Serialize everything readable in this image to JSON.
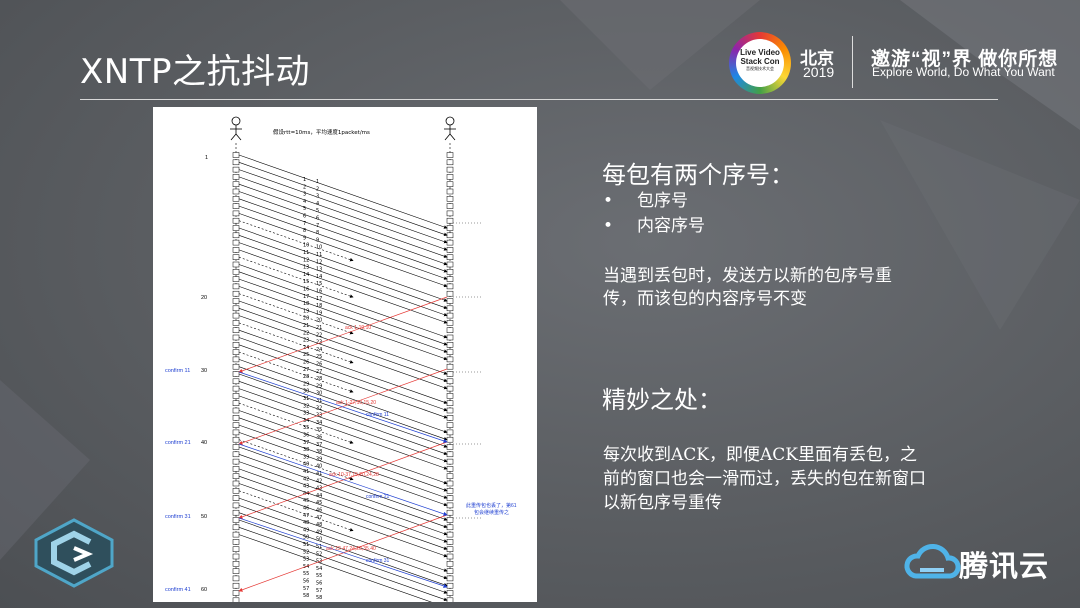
{
  "header": {
    "title": "XNTP之抗抖动",
    "event_badge_lines": [
      "Live Video",
      "Stack Con",
      "音视频技术大会"
    ],
    "city": "北京",
    "year": "2019",
    "slogan_cn": "邀游“视”界 做你所想",
    "slogan_en": "Explore World, Do What You Want"
  },
  "diagram": {
    "note": "假设rtt=10ms，平均速度1packet/ms",
    "left_ticks": [
      "1",
      "20",
      "30",
      "40",
      "50",
      "60"
    ],
    "confirms_left": [
      "confirm 11",
      "confirm 21",
      "confirm 31",
      "confirm 41"
    ],
    "pair_labels": [
      "1",
      "2",
      "3",
      "4",
      "5",
      "6",
      "7",
      "8",
      "9",
      "10",
      "11",
      "12",
      "13",
      "14",
      "15",
      "16",
      "17",
      "18",
      "19",
      "20",
      "21",
      "22",
      "23",
      "24",
      "25",
      "26",
      "27",
      "28",
      "29",
      "30",
      "31",
      "32",
      "33",
      "34",
      "35",
      "36",
      "37",
      "38",
      "39",
      "40",
      "41",
      "42",
      "43",
      "44",
      "45",
      "46",
      "47",
      "48",
      "49",
      "50",
      "51",
      "52",
      "53",
      "54",
      "55",
      "56",
      "57",
      "58"
    ],
    "red_acks": [
      "ack 1-19,10",
      "ack 1-27,10,15,20",
      "ack 10-37,15,20,24,28",
      "ack 22-47,24,28,35,40"
    ],
    "blue_confirms": [
      "confirm 11",
      "confirm 21",
      "confirm 31"
    ],
    "right_note_1": "此重传包也丢了，第61",
    "right_note_2": "包会继续重传之"
  },
  "content": {
    "heading1": "每包有两个序号：",
    "bullets": [
      "包序号",
      "内容序号"
    ],
    "bullet_marker": "•",
    "para1": "当遇到丢包时，发送方以新的包序号重传，而该包的内容序号不变",
    "heading2": "精妙之处：",
    "para2": "每次收到ACK，即便ACK里面有丢包，之前的窗口也会一滑而过，丢失的包在新窗口以新包序号重传"
  },
  "footer": {
    "brand": "腾讯云"
  },
  "colors": {
    "ack_red": "#e53935",
    "confirm_blue": "#1e3fd1",
    "text": "#ffffff",
    "background": "#5c5f63"
  }
}
